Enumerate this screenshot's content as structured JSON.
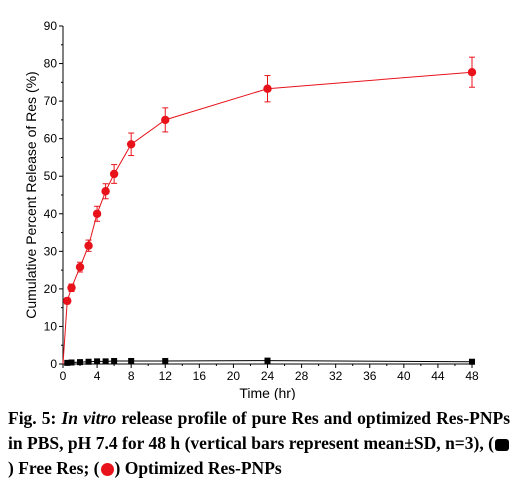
{
  "chart_data": {
    "type": "line",
    "xlabel": "Time (hr)",
    "ylabel": "Cumulative Percent Release of Res (%)",
    "xlim": [
      0,
      48
    ],
    "ylim": [
      0,
      90
    ],
    "x_ticks": [
      0,
      4,
      8,
      12,
      16,
      20,
      24,
      28,
      32,
      36,
      40,
      44,
      48
    ],
    "y_ticks": [
      0,
      10,
      20,
      30,
      40,
      50,
      60,
      70,
      80,
      90
    ],
    "grid": false,
    "legend": "none",
    "series": [
      {
        "name": "Free Res",
        "marker": "square",
        "color": "#000000",
        "x": [
          0.5,
          1,
          2,
          3,
          4,
          5,
          6,
          8,
          12,
          24,
          48
        ],
        "y": [
          0.3,
          0.4,
          0.5,
          0.6,
          0.7,
          0.7,
          0.8,
          0.8,
          0.8,
          0.9,
          0.6
        ],
        "error": [
          0,
          0,
          0,
          0,
          0,
          0,
          0,
          0,
          0,
          0,
          0
        ]
      },
      {
        "name": "Optimized Res-PNPs",
        "marker": "circle",
        "color": "#e8121b",
        "x": [
          0.5,
          1,
          2,
          3,
          4,
          5,
          6,
          8,
          12,
          24,
          48
        ],
        "y": [
          16.8,
          20.3,
          25.8,
          31.5,
          40.0,
          46.0,
          50.6,
          58.5,
          65.0,
          73.3,
          77.7
        ],
        "error": [
          0.8,
          1.0,
          1.3,
          1.5,
          2.0,
          2.0,
          2.5,
          3.0,
          3.2,
          3.5,
          4.0
        ]
      }
    ]
  },
  "caption": {
    "fig_label": "Fig. 5:",
    "italic": "In vitro",
    "text": " release profile of pure Res and optimized Res-PNPs in PBS, pH 7.4 for 48 h (vertical bars represent mean±SD, n=3), (",
    "free_label": ") Free Res; (",
    "opt_label": ") Optimized Res-PNPs"
  }
}
